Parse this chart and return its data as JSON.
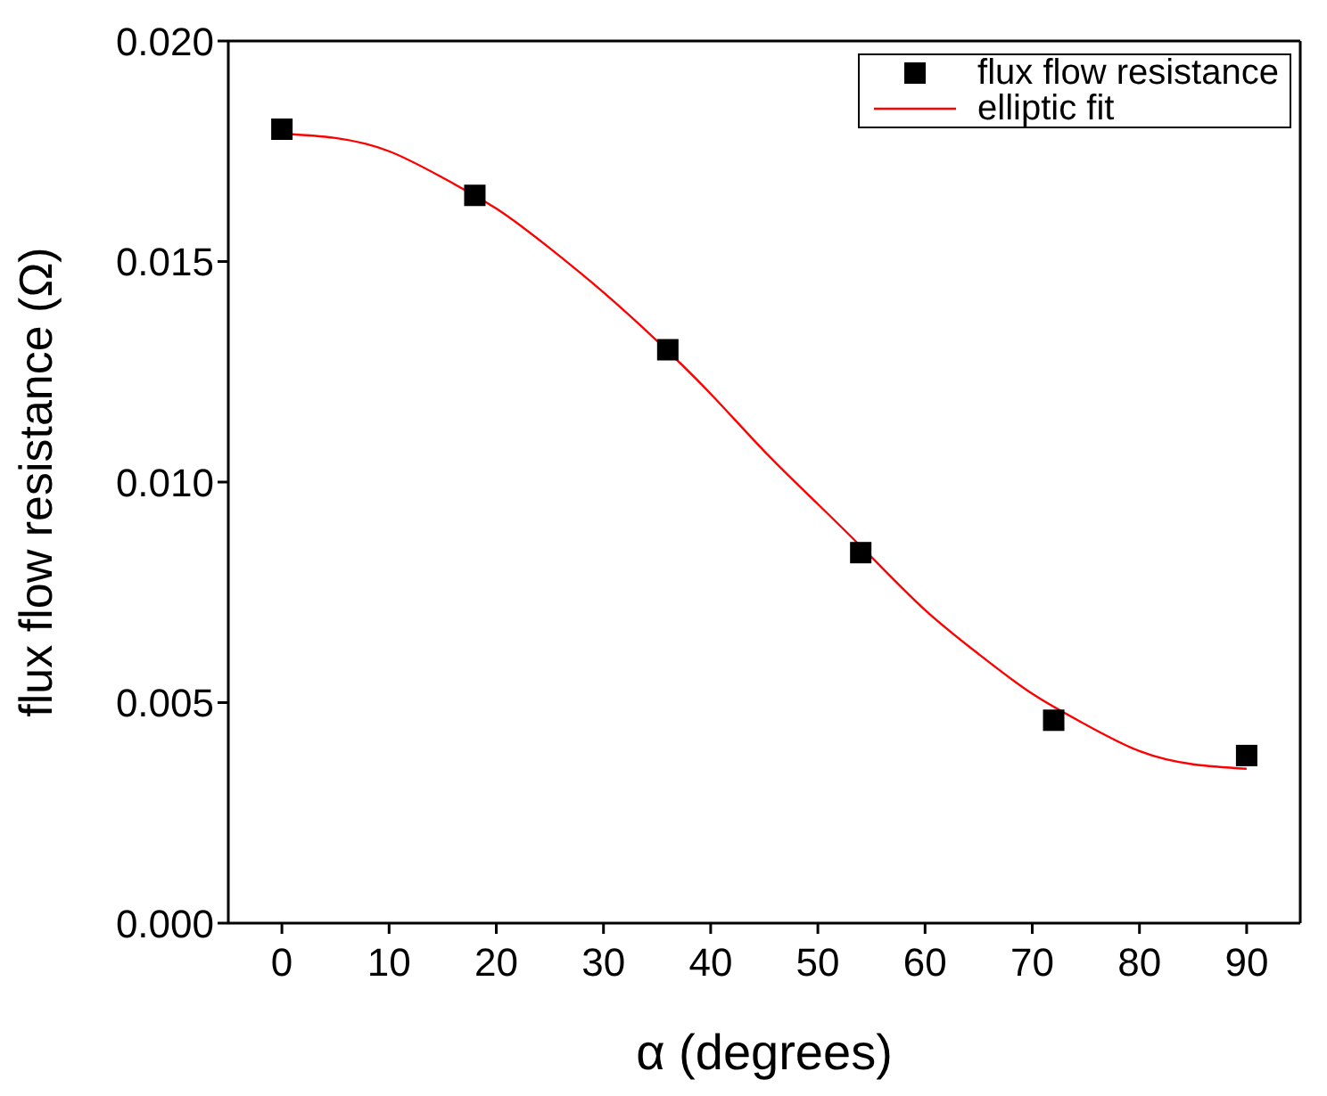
{
  "chart_data": {
    "type": "scatter",
    "xlabel": "α (degrees)",
    "ylabel": "flux flow resistance (Ω)",
    "xlim": [
      -5,
      95
    ],
    "xticks": [
      0,
      10,
      20,
      30,
      40,
      50,
      60,
      70,
      80,
      90
    ],
    "ylim": [
      0,
      0.02
    ],
    "yticks": [
      {
        "value": 0,
        "label": "0.000"
      },
      {
        "value": 0.005,
        "label": "0.005"
      },
      {
        "value": 0.01,
        "label": "0.010"
      },
      {
        "value": 0.015,
        "label": "0.015"
      },
      {
        "value": 0.02,
        "label": "0.020"
      }
    ],
    "grid": false,
    "legend": "top right",
    "series": [
      {
        "name": "flux flow resistance",
        "color": "#000000",
        "marker": "square",
        "x": [
          0,
          18,
          36,
          54,
          72,
          90
        ],
        "values": [
          0.018,
          0.0165,
          0.013,
          0.0084,
          0.0046,
          0.0038
        ]
      },
      {
        "name": "elliptic fit",
        "type": "line",
        "color": "#ff0000",
        "marker": "none",
        "line_style": "solid",
        "x": [
          0,
          5,
          10,
          15,
          20,
          25,
          30,
          35,
          40,
          45,
          50,
          55,
          60,
          65,
          70,
          75,
          80,
          85,
          90
        ],
        "values": [
          0.0179,
          0.0178,
          0.0175,
          0.0169,
          0.0162,
          0.0153,
          0.0143,
          0.0132,
          0.012,
          0.0107,
          0.0095,
          0.0083,
          0.0071,
          0.0061,
          0.0052,
          0.0045,
          0.0039,
          0.0036,
          0.0035
        ]
      }
    ]
  }
}
